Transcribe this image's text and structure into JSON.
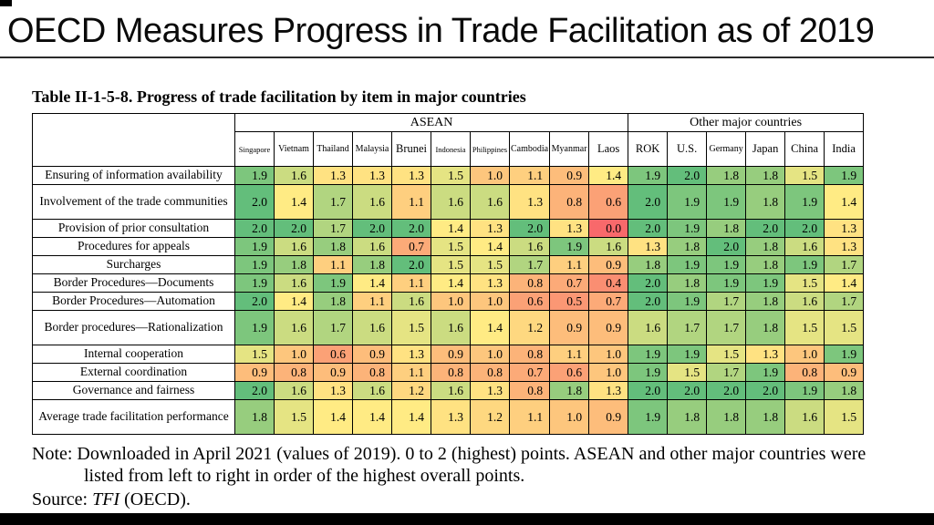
{
  "slide": {
    "title": "OECD Measures Progress in Trade Facilitation as of 2019"
  },
  "table": {
    "caption": "Table II-1-5-8. Progress of trade facilitation by item in major countries",
    "groups": [
      {
        "label": "ASEAN",
        "span": 10
      },
      {
        "label": "Other major countries",
        "span": 6
      }
    ],
    "columns": [
      "Singapore",
      "Vietnam",
      "Thailand",
      "Malaysia",
      "Brunei",
      "Indonesia",
      "Philippines",
      "Cambodia",
      "Myanmar",
      "Laos",
      "ROK",
      "U.S.",
      "Germany",
      "Japan",
      "China",
      "India"
    ],
    "rows": [
      {
        "label": "Ensuring of information availability",
        "tall": false,
        "values": [
          1.9,
          1.6,
          1.3,
          1.3,
          1.3,
          1.5,
          1.0,
          1.1,
          0.9,
          1.4,
          1.9,
          2.0,
          1.8,
          1.8,
          1.5,
          1.9
        ]
      },
      {
        "label": "Involvement of the trade communities",
        "tall": true,
        "values": [
          2.0,
          1.4,
          1.7,
          1.6,
          1.1,
          1.6,
          1.6,
          1.3,
          0.8,
          0.6,
          2.0,
          1.9,
          1.9,
          1.8,
          1.9,
          1.4
        ]
      },
      {
        "label": "Provision of prior consultation",
        "tall": false,
        "values": [
          2.0,
          2.0,
          1.7,
          2.0,
          2.0,
          1.4,
          1.3,
          2.0,
          1.3,
          0.0,
          2.0,
          1.9,
          1.8,
          2.0,
          2.0,
          1.3
        ]
      },
      {
        "label": "Procedures for appeals",
        "tall": false,
        "values": [
          1.9,
          1.6,
          1.8,
          1.6,
          0.7,
          1.5,
          1.4,
          1.6,
          1.9,
          1.6,
          1.3,
          1.8,
          2.0,
          1.8,
          1.6,
          1.3
        ]
      },
      {
        "label": "Surcharges",
        "tall": false,
        "values": [
          1.9,
          1.8,
          1.1,
          1.8,
          2.0,
          1.5,
          1.5,
          1.7,
          1.1,
          0.9,
          1.8,
          1.9,
          1.9,
          1.8,
          1.9,
          1.7
        ]
      },
      {
        "label": "Border Procedures—Documents",
        "tall": false,
        "values": [
          1.9,
          1.6,
          1.9,
          1.4,
          1.1,
          1.4,
          1.3,
          0.8,
          0.7,
          0.4,
          2.0,
          1.8,
          1.9,
          1.9,
          1.5,
          1.4
        ]
      },
      {
        "label": "Border Procedures—Automation",
        "tall": false,
        "values": [
          2.0,
          1.4,
          1.8,
          1.1,
          1.6,
          1.0,
          1.0,
          0.6,
          0.5,
          0.7,
          2.0,
          1.9,
          1.7,
          1.8,
          1.6,
          1.7
        ]
      },
      {
        "label": "Border procedures—Rationalization",
        "tall": true,
        "values": [
          1.9,
          1.6,
          1.7,
          1.6,
          1.5,
          1.6,
          1.4,
          1.2,
          0.9,
          0.9,
          1.6,
          1.7,
          1.7,
          1.8,
          1.5,
          1.5
        ]
      },
      {
        "label": "Internal cooperation",
        "tall": false,
        "values": [
          1.5,
          1.0,
          0.6,
          0.9,
          1.3,
          0.9,
          1.0,
          0.8,
          1.1,
          1.0,
          1.9,
          1.9,
          1.5,
          1.3,
          1.0,
          1.9
        ]
      },
      {
        "label": "External coordination",
        "tall": false,
        "values": [
          0.9,
          0.8,
          0.9,
          0.8,
          1.1,
          0.8,
          0.8,
          0.7,
          0.6,
          1.0,
          1.9,
          1.5,
          1.7,
          1.9,
          0.8,
          0.9
        ]
      },
      {
        "label": "Governance and fairness",
        "tall": false,
        "values": [
          2.0,
          1.6,
          1.3,
          1.6,
          1.2,
          1.6,
          1.3,
          0.8,
          1.8,
          1.3,
          2.0,
          2.0,
          2.0,
          2.0,
          1.9,
          1.8
        ]
      },
      {
        "label": "Average trade facilitation performance",
        "tall": true,
        "values": [
          1.8,
          1.5,
          1.4,
          1.4,
          1.4,
          1.3,
          1.2,
          1.1,
          1.0,
          0.9,
          1.9,
          1.8,
          1.8,
          1.8,
          1.6,
          1.5
        ]
      }
    ]
  },
  "heatmap": {
    "min": 0,
    "mid": 1.4,
    "max": 2,
    "min_color": "#F8696B",
    "mid_color": "#FFEB84",
    "max_color": "#63BE7B"
  },
  "notes": {
    "note": "Note: Downloaded in April 2021 (values of 2019). 0 to 2 (highest) points. ASEAN and other major countries were listed from left to right in order of the highest overall points.",
    "source_prefix": "Source: ",
    "source_work": "TFI",
    "source_suffix": " (OECD)."
  }
}
